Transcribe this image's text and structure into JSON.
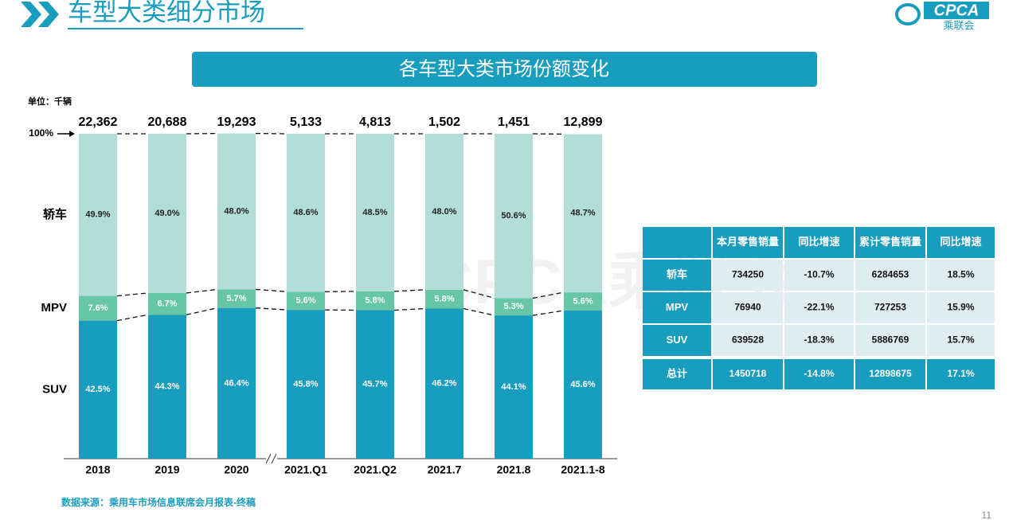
{
  "header": {
    "title": "车型大类细分市场",
    "logo": "CPCA",
    "logo_subtitle": "乘联会"
  },
  "chart_data": {
    "type": "bar",
    "stacked": true,
    "title": "各车型大类市场份额变化",
    "unit_label": "单位：千辆",
    "categories": [
      "2018",
      "2019",
      "2020",
      "2021.Q1",
      "2021.Q2",
      "2021.7",
      "2021.8",
      "2021.1-8"
    ],
    "totals": {
      "values": [
        22362,
        20688,
        19293,
        5133,
        4813,
        1502,
        1451,
        12899
      ],
      "value_labels": [
        "22,362",
        "20,688",
        "19,293",
        "5,133",
        "4,813",
        "1,502",
        "1,451",
        "12,899"
      ]
    },
    "series": [
      {
        "name": "SUV",
        "color": "#189dbf",
        "values": [
          42.5,
          44.3,
          46.4,
          45.8,
          45.7,
          46.2,
          44.1,
          45.6
        ],
        "value_labels": [
          "42.5%",
          "44.3%",
          "46.4%",
          "45.8%",
          "45.7%",
          "46.2%",
          "44.1%",
          "45.6%"
        ]
      },
      {
        "name": "MPV",
        "color": "#66c6a6",
        "values": [
          7.6,
          6.7,
          5.7,
          5.6,
          5.8,
          5.8,
          5.3,
          5.6
        ],
        "value_labels": [
          "7.6%",
          "6.7%",
          "5.7%",
          "5.6%",
          "5.8%",
          "5.8%",
          "5.3%",
          "5.6%"
        ]
      },
      {
        "name": "轿车",
        "color": "#b3ded7",
        "values": [
          49.9,
          49.0,
          48.0,
          48.6,
          48.5,
          48.0,
          50.6,
          48.7
        ],
        "value_labels": [
          "49.9%",
          "49.0%",
          "48.0%",
          "48.6%",
          "48.5%",
          "48.0%",
          "50.6%",
          "48.7%"
        ]
      }
    ],
    "ylim": [
      0,
      100
    ],
    "yticks": [
      {
        "value": 100,
        "label": "100%"
      }
    ]
  },
  "table": {
    "columns": [
      "本月零售销量",
      "同比增速",
      "累计零售销量",
      "同比增速"
    ],
    "rows": [
      {
        "label": "轿车",
        "cells": [
          "734250",
          "-10.7%",
          "6284653",
          "18.5%"
        ]
      },
      {
        "label": "MPV",
        "cells": [
          "76940",
          "-22.1%",
          "727253",
          "15.9%"
        ]
      },
      {
        "label": "SUV",
        "cells": [
          "639528",
          "-18.3%",
          "5886769",
          "15.7%"
        ]
      },
      {
        "label": "总计",
        "cells": [
          "1450718",
          "-14.8%",
          "12898675",
          "17.1%"
        ]
      }
    ]
  },
  "watermark": "CPCA乘联会",
  "footer": {
    "source": "数据来源：乘用车市场信息联席会月报表-终稿",
    "page": "11"
  }
}
